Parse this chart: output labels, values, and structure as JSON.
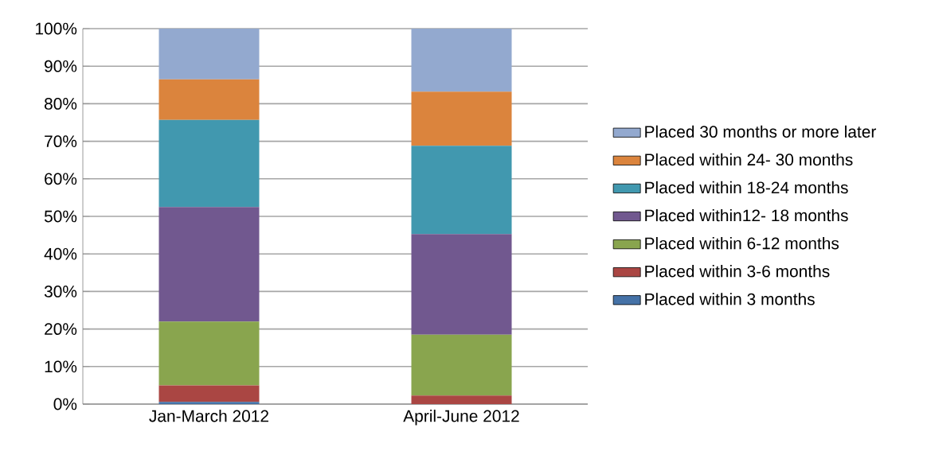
{
  "chart_data": {
    "type": "bar",
    "stacked": true,
    "categories": [
      "Jan-March 2012",
      "April-June 2012"
    ],
    "series": [
      {
        "name": "Placed within 3 months",
        "color": "#4572a7",
        "values": [
          0.6,
          0
        ]
      },
      {
        "name": "Placed within 3-6 months",
        "color": "#aa4643",
        "values": [
          4.4,
          2.3
        ]
      },
      {
        "name": "Placed within 6-12 months",
        "color": "#89a54e",
        "values": [
          17.0,
          16.2
        ]
      },
      {
        "name": "Placed within12- 18 months",
        "color": "#71588f",
        "values": [
          30.5,
          26.8
        ]
      },
      {
        "name": "Placed within 18-24 months",
        "color": "#4198af",
        "values": [
          23.2,
          23.5
        ]
      },
      {
        "name": "Placed within 24- 30 months",
        "color": "#db843d",
        "values": [
          10.8,
          14.4
        ]
      },
      {
        "name": "Placed 30 months or more later",
        "color": "#93a9cf",
        "values": [
          13.5,
          16.8
        ]
      }
    ],
    "ylim": [
      0,
      100
    ],
    "yticks": [
      {
        "value": 0,
        "label": "0%"
      },
      {
        "value": 10,
        "label": "10%"
      },
      {
        "value": 20,
        "label": "20%"
      },
      {
        "value": 30,
        "label": "30%"
      },
      {
        "value": 40,
        "label": "40%"
      },
      {
        "value": 50,
        "label": "50%"
      },
      {
        "value": 60,
        "label": "60%"
      },
      {
        "value": 70,
        "label": "70%"
      },
      {
        "value": 80,
        "label": "80%"
      },
      {
        "value": 90,
        "label": "90%"
      },
      {
        "value": 100,
        "label": "100%"
      }
    ],
    "grid": "y",
    "legend": "right"
  }
}
